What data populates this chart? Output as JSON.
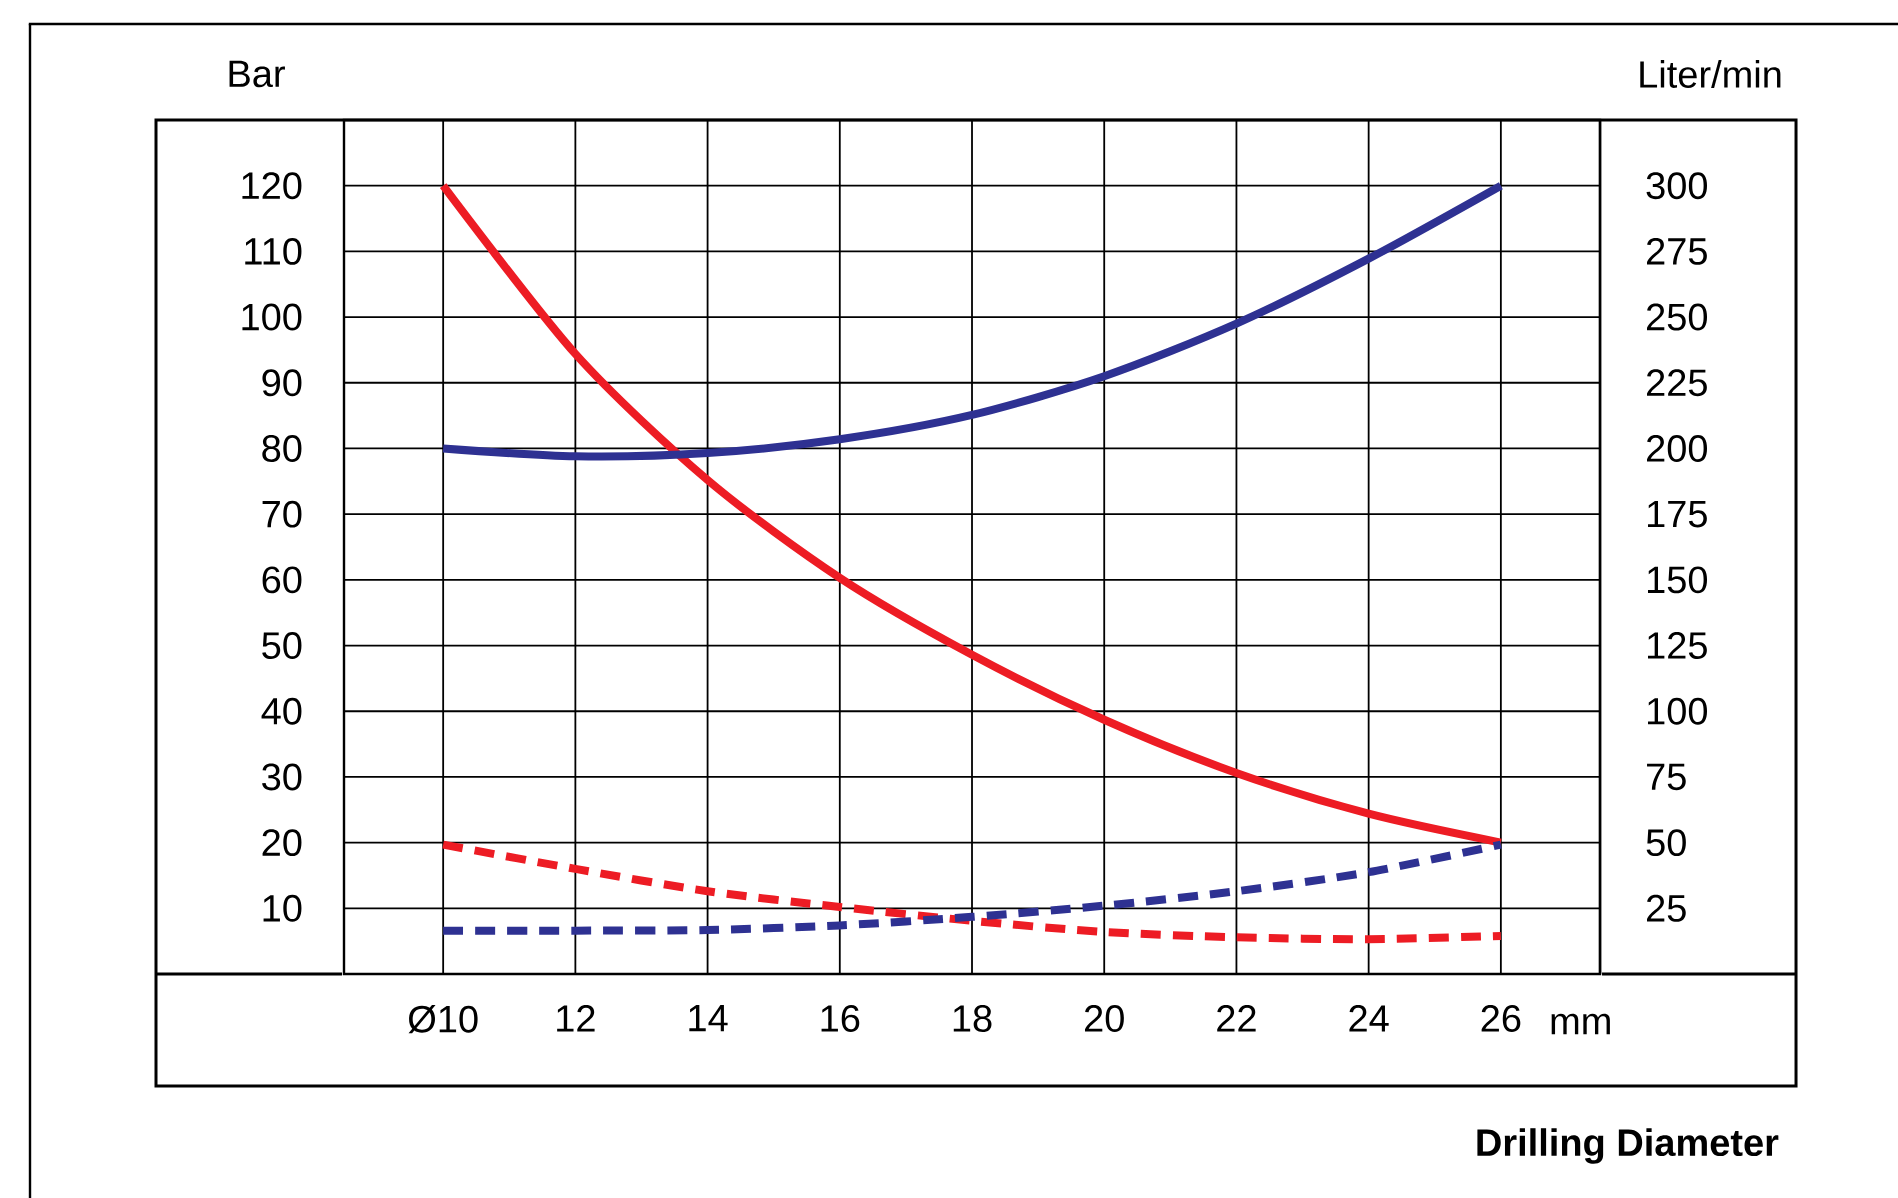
{
  "chart_data": {
    "type": "line",
    "xlabel": "Drilling Diameter",
    "ylabel": "Bar",
    "y2label": "Liter/min",
    "annotations": [
      "mm"
    ],
    "x": [
      10,
      12,
      14,
      16,
      18,
      20,
      22,
      24,
      26
    ],
    "series": [
      {
        "color": "#ed1c24",
        "line_style": "solid",
        "values": [
          120,
          94.4,
          75.2,
          60.3,
          48.6,
          38.7,
          30.6,
          24.4,
          20
        ]
      },
      {
        "color": "#2e3192",
        "line_style": "solid",
        "values": [
          80,
          78.8,
          79.3,
          81.4,
          85.1,
          91,
          99,
          108.9,
          120
        ]
      },
      {
        "color": "#ed1c24",
        "line_style": "dashed",
        "values": [
          19.7,
          16,
          12.6,
          10.2,
          8.1,
          6.4,
          5.6,
          5.3,
          5.8
        ]
      },
      {
        "color": "#2e3192",
        "line_style": "dashed",
        "values": [
          6.6,
          6.6,
          6.7,
          7.4,
          8.7,
          10.4,
          12.6,
          15.5,
          19.7
        ]
      }
    ],
    "xlim": [
      8.5,
      27.5
    ],
    "ylim": [
      0,
      130
    ],
    "y2lim": [
      0,
      325
    ],
    "xticks": [
      {
        "value": 10,
        "label": "Ø10"
      },
      12,
      14,
      16,
      18,
      20,
      22,
      24,
      26
    ],
    "yticks": [
      10,
      20,
      30,
      40,
      50,
      60,
      70,
      80,
      90,
      100,
      110,
      120
    ],
    "y2ticks": [
      25,
      50,
      75,
      100,
      125,
      150,
      175,
      200,
      225,
      250,
      275,
      300
    ],
    "grid": true,
    "marker": "none"
  }
}
